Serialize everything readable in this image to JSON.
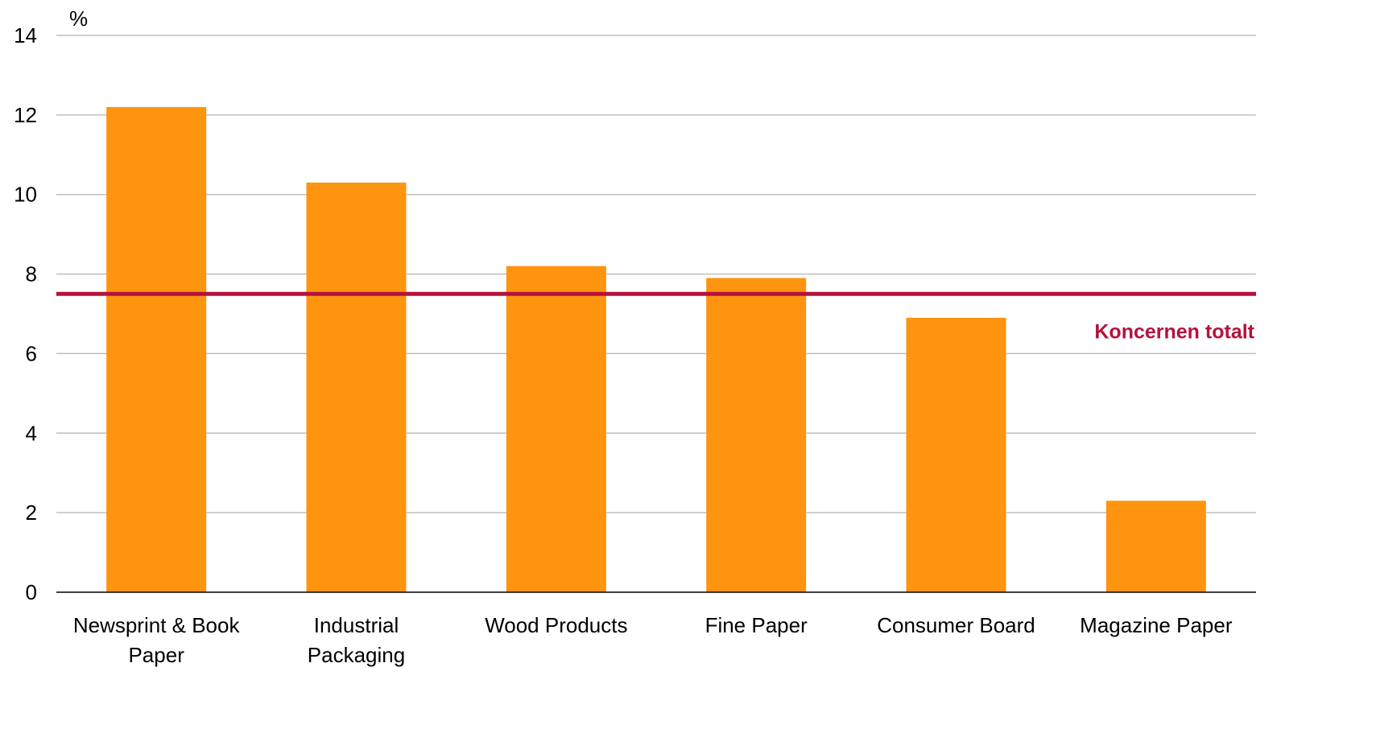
{
  "chart_data": {
    "type": "bar",
    "unit": "%",
    "categories": [
      [
        "Newsprint & Book",
        "Paper"
      ],
      [
        "Industrial",
        "Packaging"
      ],
      [
        "Wood Products"
      ],
      [
        "Fine Paper"
      ],
      [
        "Consumer Board"
      ],
      [
        "Magazine Paper"
      ]
    ],
    "values": [
      12.2,
      10.3,
      8.2,
      7.9,
      6.9,
      2.3
    ],
    "ylim": [
      0,
      14
    ],
    "yticks": [
      0,
      2,
      4,
      6,
      8,
      10,
      12,
      14
    ],
    "grid": true,
    "reference_line": {
      "label": "Koncernen totalt",
      "value": 7.5
    },
    "colors": {
      "bar": "#FF9410",
      "reference": "#B5123C",
      "grid": "#BFBFBF",
      "axis": "#000000"
    }
  }
}
